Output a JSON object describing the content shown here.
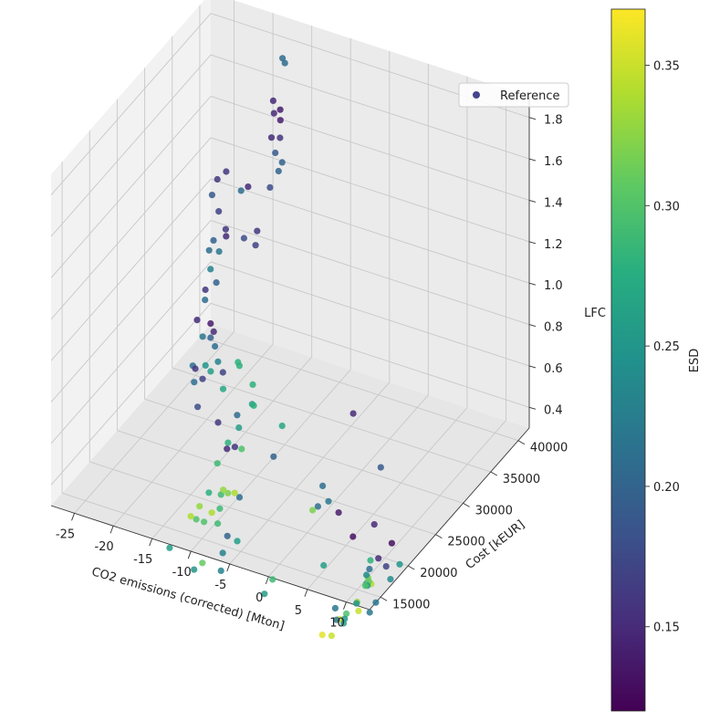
{
  "chart_data": {
    "type": "scatter",
    "projection": "3d",
    "xlabel": "CO2 emissions (corrected) [Mton]",
    "ylabel": "Cost [kEUR]",
    "zlabel": "LFC",
    "colorbar_label": "ESD",
    "colormap": "viridis",
    "xlim": [
      -28,
      13
    ],
    "ylim": [
      13000,
      42000
    ],
    "zlim": [
      0.3,
      1.9
    ],
    "clim": [
      0.12,
      0.37
    ],
    "x_ticks": [
      "-25",
      "-20",
      "-15",
      "-10",
      "-5",
      "0",
      "5",
      "10"
    ],
    "y_ticks": [
      "15000",
      "20000",
      "25000",
      "30000",
      "35000",
      "40000"
    ],
    "z_ticks": [
      "0.4",
      "0.6",
      "0.8",
      "1.0",
      "1.2",
      "1.4",
      "1.6",
      "1.8"
    ],
    "colorbar_ticks": [
      "0.15",
      "0.20",
      "0.25",
      "0.30",
      "0.35"
    ],
    "grid": true,
    "legend": {
      "position": "upper-right",
      "entries": [
        {
          "label": "Reference",
          "color": "#46468c"
        }
      ]
    },
    "series": [
      {
        "name": "Reference",
        "x": [
          -14.7,
          -14.4,
          -14.8,
          -13.5,
          -13.8,
          -13.1,
          -13.2,
          -12.5,
          -12.2,
          -11.4,
          -11.9,
          -12.6,
          -15.4,
          -16.3,
          -17.1,
          -17.3,
          -18.1,
          -16.9,
          -15.9,
          -15.6,
          -16.5,
          -15.7,
          -14.2,
          -12.6,
          -12.6,
          -16.8,
          -16.1,
          -14.7,
          -15.7,
          -15.4,
          -15.7,
          -14.4,
          -14.1,
          -14.6,
          -13.7,
          -12.5,
          -11.4,
          -10.7,
          -13.2,
          -12.5,
          -12.5,
          -13.8,
          -12.7,
          -12.2,
          -10.6,
          -9.4,
          -9.5,
          -10.8,
          -14.2,
          -11.9,
          -11.8,
          -12.5,
          -11.0,
          -11.0,
          -10.7,
          -11.7,
          -11.2,
          -13.1,
          -12.9,
          -13.9,
          -11.8,
          -10.5,
          -9.3,
          -10.5,
          -10.3,
          -12.0,
          -12.0,
          -11.1,
          -12.1,
          -10.4,
          -9.8,
          -13.7,
          -11.9,
          -11.1,
          -5.5,
          -3.3,
          1.4,
          3.8,
          -5.9,
          -3.0,
          1.1,
          1.6,
          -0.7,
          -5.9,
          -7.7,
          -9.4,
          -9.7,
          -9.1,
          -4.0,
          2.1,
          2.1,
          3.1,
          5.8,
          7.2,
          6.1,
          7.4,
          5.6,
          6.0,
          8.2,
          7.5,
          5.3,
          5.7,
          5.3,
          7.3,
          6.0,
          6.3,
          6.1,
          7.9,
          7.8,
          5.8,
          6.3,
          5.6,
          8.0,
          6.6,
          6.4,
          6.6,
          5.8,
          6.5,
          7.5,
          6.3
        ],
        "y": [
          36270,
          36270,
          34720,
          34150,
          33460,
          33630,
          32140,
          32720,
          31430,
          31550,
          31600,
          31030,
          31000,
          31000,
          29430,
          28100,
          28260,
          27780,
          27650,
          27300,
          26280,
          26160,
          28560,
          28700,
          28410,
          25900,
          25160,
          24250,
          23680,
          23180,
          22160,
          22780,
          22930,
          21620,
          21800,
          20900,
          19900,
          19800,
          17860,
          17330,
          19180,
          18960,
          18930,
          17320,
          18780,
          18690,
          20280,
          22530,
          22510,
          24230,
          24360,
          22370,
          25650,
          25520,
          25400,
          24110,
          23900,
          24120,
          21900,
          21770,
          21000,
          20430,
          19960,
          18950,
          18300,
          15800,
          17400,
          16930,
          16930,
          17350,
          18600,
          14360,
          16250,
          16640,
          21670,
          27480,
          26390,
          28020,
          15630,
          17960,
          19440,
          20740,
          22940,
          23780,
          18590,
          17930,
          19200,
          17200,
          17890,
          20920,
          22760,
          23950,
          24020,
          25230,
          24340,
          23920,
          23430,
          23180,
          25240,
          24560,
          23580,
          23170,
          23300,
          21200,
          22310,
          22060,
          21950,
          21330,
          20370,
          20900,
          18240,
          18060,
          18040,
          19660,
          17780,
          16070,
          16930,
          17440,
          13870,
          13870
        ],
        "z": [
          1.92,
          1.9,
          1.76,
          1.75,
          1.75,
          1.72,
          1.68,
          1.67,
          1.64,
          1.6,
          1.55,
          1.48,
          1.45,
          1.42,
          1.55,
          1.55,
          1.46,
          1.41,
          1.34,
          1.32,
          1.32,
          1.28,
          1.29,
          1.34,
          1.28,
          1.28,
          1.22,
          1.2,
          1.17,
          1.14,
          1.07,
          1.05,
          1.01,
          1.02,
          1.02,
          1.02,
          0.99,
          0.95,
          1.01,
          1.02,
          0.98,
          0.89,
          0.92,
          0.84,
          0.74,
          0.63,
          0.59,
          0.66,
          0.83,
          0.85,
          0.83,
          0.77,
          0.71,
          0.62,
          0.62,
          0.54,
          0.45,
          0.45,
          0.42,
          0.27,
          0.31,
          0.35,
          0.38,
          0.32,
          0.27,
          0.36,
          0.36,
          0.31,
          0.31,
          0.35,
          0.43,
          0.23,
          0.09,
          0.12,
          0.55,
          0.26,
          0.7,
          0.42,
          0.32,
          0.1,
          0.44,
          0.14,
          0.33,
          0.63,
          0.42,
          0.15,
          0.19,
          0.09,
          0.02,
          0.45,
          0.34,
          0.2,
          0.29,
          0.18,
          0.12,
          0.11,
          0.09,
          0.03,
          0.09,
          0.03,
          0.04,
          0.04,
          0.02,
          0.22,
          0.1,
          0.06,
          0.06,
          0.02,
          0.0,
          0.01,
          0.04,
          0.01,
          0.08,
          0.05,
          0.03,
          0.08,
          0.1,
          0.02,
          0.08,
          0.07
        ],
        "c": [
          0.21,
          0.21,
          0.15,
          0.14,
          0.15,
          0.14,
          0.15,
          0.16,
          0.19,
          0.2,
          0.2,
          0.18,
          0.15,
          0.21,
          0.16,
          0.16,
          0.19,
          0.17,
          0.16,
          0.15,
          0.2,
          0.22,
          0.18,
          0.16,
          0.17,
          0.21,
          0.23,
          0.2,
          0.16,
          0.21,
          0.15,
          0.14,
          0.15,
          0.22,
          0.2,
          0.21,
          0.23,
          0.17,
          0.21,
          0.16,
          0.25,
          0.21,
          0.17,
          0.18,
          0.16,
          0.15,
          0.16,
          0.21,
          0.26,
          0.28,
          0.28,
          0.27,
          0.28,
          0.26,
          0.28,
          0.26,
          0.3,
          0.28,
          0.29,
          0.28,
          0.29,
          0.32,
          0.34,
          0.29,
          0.29,
          0.34,
          0.33,
          0.3,
          0.3,
          0.34,
          0.33,
          0.26,
          0.25,
          0.31,
          0.2,
          0.21,
          0.15,
          0.19,
          0.26,
          0.29,
          0.32,
          0.26,
          0.21,
          0.27,
          0.21,
          0.23,
          0.2,
          0.23,
          0.26,
          0.22,
          0.14,
          0.13,
          0.15,
          0.13,
          0.15,
          0.17,
          0.21,
          0.34,
          0.25,
          0.24,
          0.32,
          0.31,
          0.27,
          0.28,
          0.24,
          0.25,
          0.3,
          0.22,
          0.22,
          0.33,
          0.3,
          0.36,
          0.35,
          0.25,
          0.25,
          0.22,
          0.22,
          0.26,
          0.35,
          0.36
        ]
      }
    ]
  }
}
